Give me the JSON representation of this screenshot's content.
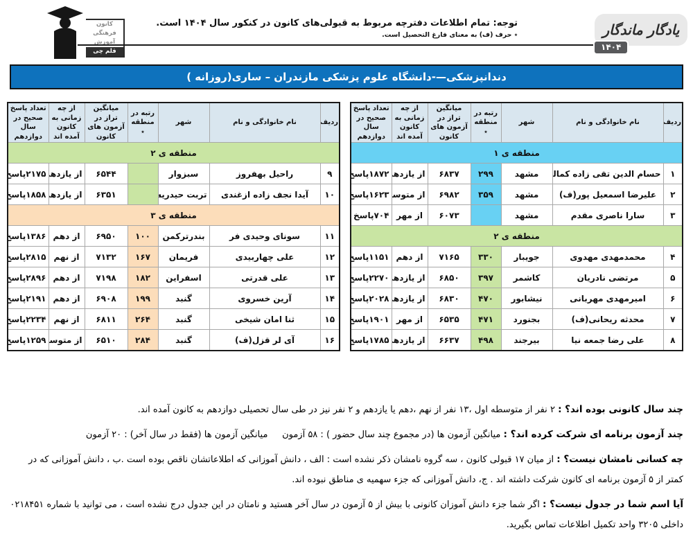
{
  "header": {
    "note_line1": "توجه: تمام اطلاعات دفترچه مربوط به قبولی‌های کانون در کنکور سال ۱۴۰۴ است.",
    "note_line2": "٭ حرف (ف) به معنای فارغ التحصیل است.",
    "kanoon_logo_lines": [
      "کانون",
      "فرهنگی",
      "آموزش",
      "قلم چی"
    ],
    "yadegar_text": "یادگار ماندگار",
    "year_badge": "۱۴۰۴"
  },
  "title": "دندانپزشکی—-دانشگاه علوم پزشکی مازندران – ساری(روزانه )",
  "columns": [
    "ردیف",
    "نام خانوادگی و نام",
    "شهر",
    "رتبه در منطقه ٭",
    "میانگین تراز در آزمون های کانون",
    "از چه زمانی به کانون آمده اند",
    "تعداد پاسخ صحیح در سال دوازدهم"
  ],
  "colors": {
    "title_bar": "#0e72bd",
    "header_cell": "#d9e6ef",
    "region1": "#68d1f3",
    "region2": "#c9e5a3",
    "region3": "#fcddba"
  },
  "tables": [
    {
      "side": "right",
      "sections": [
        {
          "label": "منطقه ی ۱",
          "theme": "region1",
          "rows": [
            {
              "no": "۱",
              "name": "حسام الدین تقی زاده کمالی",
              "city": "مشهد",
              "rank": "۲۹۹",
              "avg": "۶۸۳۷",
              "since": "از یازدهم",
              "answers": "۱۸۷۲پاسخ"
            },
            {
              "no": "۲",
              "name": "علیرضا اسمعیل پور(ف)",
              "city": "مشهد",
              "rank": "۳۵۹",
              "avg": "۶۹۸۲",
              "since": "از متوسطه اول",
              "answers": "۱۶۲۳پاسخ"
            },
            {
              "no": "۳",
              "name": "سارا ناصری مقدم",
              "city": "مشهد",
              "rank": "",
              "avg": "۶۰۷۳",
              "since": "از مهر",
              "answers": "۷۰۴پاسخ"
            }
          ]
        },
        {
          "label": "منطقه ی ۲",
          "theme": "region2",
          "rows": [
            {
              "no": "۴",
              "name": "محمدمهدی مهدوی",
              "city": "جویبار",
              "rank": "۳۳۰",
              "avg": "۷۱۶۵",
              "since": "از دهم",
              "answers": "۱۱۵۱پاسخ"
            },
            {
              "no": "۵",
              "name": "مرتضی نادریان",
              "city": "کاشمر",
              "rank": "۳۹۷",
              "avg": "۶۸۵۰",
              "since": "از یازدهم",
              "answers": "۲۲۷۰پاسخ"
            },
            {
              "no": "۶",
              "name": "امیرمهدی مهربانی",
              "city": "نیشابور",
              "rank": "۴۷۰",
              "avg": "۶۸۳۰",
              "since": "از یازدهم",
              "answers": "۲۰۲۸پاسخ"
            },
            {
              "no": "۷",
              "name": "محدثه ریحانی(ف)",
              "city": "بجنورد",
              "rank": "۴۷۱",
              "avg": "۶۵۳۵",
              "since": "از مهر",
              "answers": "۱۹۰۱پاسخ"
            },
            {
              "no": "۸",
              "name": "علی رضا جمعه نیا",
              "city": "بیرجند",
              "rank": "۴۹۸",
              "avg": "۶۶۳۷",
              "since": "از یازدهم",
              "answers": "۱۷۸۵پاسخ"
            }
          ]
        }
      ]
    },
    {
      "side": "left",
      "sections": [
        {
          "label": "منطقه ی ۲",
          "theme": "region2",
          "rows": [
            {
              "no": "۹",
              "name": "راحیل بهفروز",
              "city": "سبزوار",
              "rank": "",
              "avg": "۶۵۴۴",
              "since": "از یازدهم",
              "answers": "۲۱۷۵پاسخ"
            },
            {
              "no": "۱۰",
              "name": "آیدا نجف زاده ازغندی",
              "city": "تربت حیدریه",
              "rank": "",
              "avg": "۶۳۵۱",
              "since": "از یازدهم",
              "answers": "۱۸۵۸پاسخ"
            }
          ]
        },
        {
          "label": "منطقه ی ۳",
          "theme": "region3",
          "rows": [
            {
              "no": "۱۱",
              "name": "سونای وحیدی فر",
              "city": "بندرترکمن",
              "rank": "۱۰۰",
              "avg": "۶۹۵۰",
              "since": "از دهم",
              "answers": "۱۳۸۶پاسخ"
            },
            {
              "no": "۱۲",
              "name": "علی چهاربیدی",
              "city": "فریمان",
              "rank": "۱۶۷",
              "avg": "۷۱۳۲",
              "since": "از نهم",
              "answers": "۲۸۱۵پاسخ"
            },
            {
              "no": "۱۳",
              "name": "علی قدرتی",
              "city": "اسفراین",
              "rank": "۱۸۲",
              "avg": "۷۱۹۸",
              "since": "از دهم",
              "answers": "۲۸۹۶پاسخ"
            },
            {
              "no": "۱۴",
              "name": "آرین خسروی",
              "city": "گنبد",
              "rank": "۱۹۹",
              "avg": "۶۹۰۸",
              "since": "از دهم",
              "answers": "۲۱۹۱پاسخ"
            },
            {
              "no": "۱۵",
              "name": "ثنا امان شیخی",
              "city": "گنبد",
              "rank": "۲۶۴",
              "avg": "۶۸۱۱",
              "since": "از نهم",
              "answers": "۲۲۳۴پاسخ"
            },
            {
              "no": "۱۶",
              "name": "آی لر قزل(ف)",
              "city": "گنبد",
              "rank": "۲۸۴",
              "avg": "۶۵۱۰",
              "since": "از متوسطه اول",
              "answers": "۱۲۵۹پاسخ"
            }
          ]
        }
      ]
    }
  ],
  "footnotes": [
    {
      "lead": "چند سال کانونی بوده اند؟ :",
      "text": " ۲ نفر از متوسطه اول ،۱۳ نفر از نهم ،دهم یا یازدهم و ۲ نفر نیز در طی سال تحصیلی دوازدهم به کانون آمده اند."
    },
    {
      "lead": "چند آزمون برنامه ای شرکت کرده اند؟ :",
      "text": " میانگین آزمون ها (در مجموع چند سال حضور ) : ۵۸ آزمون     میانگین آزمون ها (فقط در سال آخر) : ۲۰ آزمون"
    },
    {
      "lead": "چه کسانی نامشان نیست؟ :",
      "text": " از میان ۱۷ قبولی کانون ، سه گروه نامشان ذکر نشده است : الف ، دانش آموزانی که اطلاعاتشان ناقص بوده است .ب ، دانش آموزانی که در کمتر از ۵ آزمون برنامه ای کانون شرکت داشته اند . ج، دانش آموزانی که جزء سهمیه ی مناطق نبوده اند."
    },
    {
      "lead": "آیا اسم شما در جدول نیست؟ :",
      "text": " اگر شما جزء دانش آموزان کانونی با بیش از ۵ آزمون در سال آخر هستید و نامتان در این جدول درج نشده است ، می توانید با شماره ۰۲۱۸۴۵۱ داخلی ۳۲۰۵ واحد تکمیل اطلاعات تماس بگیرید."
    }
  ]
}
